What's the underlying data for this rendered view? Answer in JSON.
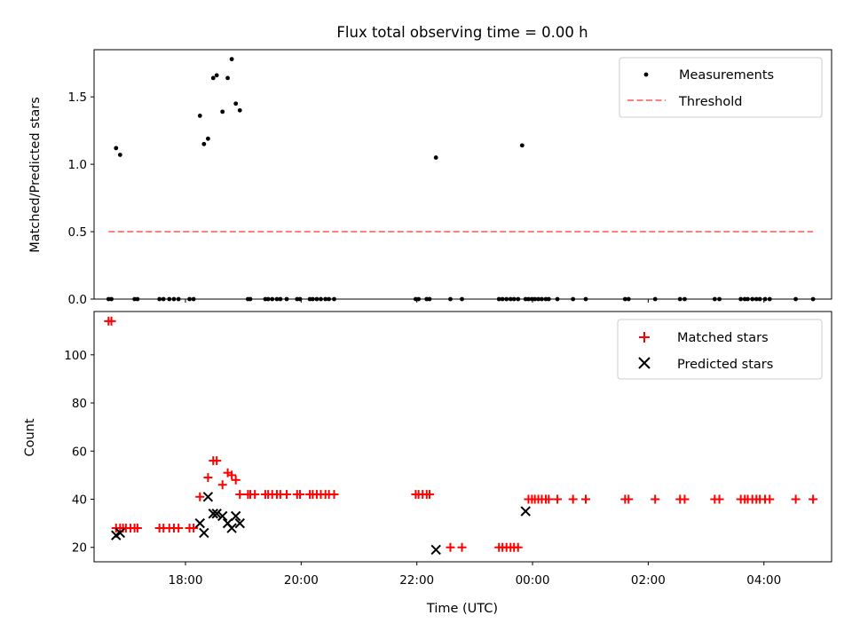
{
  "chart_data": [
    {
      "type": "scatter",
      "title": "Flux total observing time = 0.00 h",
      "xlabel": "",
      "ylabel": "Matched/Predicted stars",
      "xlim": [
        16.42,
        29.17
      ],
      "ylim": [
        0,
        1.85
      ],
      "yticks": [
        0.0,
        0.5,
        1.0,
        1.5
      ],
      "ytick_labels": [
        "0.0",
        "0.5",
        "1.0",
        "1.5"
      ],
      "xticks": [
        18,
        20,
        22,
        24,
        26,
        28
      ],
      "legend": "top-right",
      "series": [
        {
          "name": "Measurements",
          "marker": "dot",
          "color": "#000000",
          "x": [
            16.67,
            16.72,
            16.8,
            16.87,
            17.12,
            17.17,
            17.55,
            17.62,
            17.72,
            17.8,
            17.88,
            18.07,
            18.14,
            18.25,
            18.32,
            18.39,
            18.48,
            18.54,
            18.64,
            18.73,
            18.8,
            18.87,
            18.94,
            19.08,
            19.12,
            19.38,
            19.43,
            19.5,
            19.58,
            19.64,
            19.75,
            19.93,
            19.98,
            20.15,
            20.2,
            20.27,
            20.34,
            20.42,
            20.48,
            20.57,
            21.98,
            22.03,
            22.17,
            22.22,
            22.33,
            22.58,
            22.78,
            23.42,
            23.48,
            23.55,
            23.62,
            23.68,
            23.75,
            23.82,
            23.88,
            23.93,
            23.99,
            24.04,
            24.1,
            24.16,
            24.23,
            24.28,
            24.43,
            24.7,
            24.92,
            25.6,
            25.66,
            26.12,
            26.55,
            26.63,
            27.15,
            27.23,
            27.6,
            27.67,
            27.72,
            27.8,
            27.87,
            27.93,
            28.02,
            28.1,
            28.55,
            28.85
          ],
          "y": [
            0,
            0,
            1.12,
            1.07,
            0,
            0,
            0,
            0,
            0,
            0,
            0,
            0,
            0,
            1.36,
            1.15,
            1.19,
            1.64,
            1.66,
            1.39,
            1.64,
            1.78,
            1.45,
            1.4,
            0,
            0,
            0,
            0,
            0,
            0,
            0,
            0,
            0,
            0,
            0,
            0,
            0,
            0,
            0,
            0,
            0,
            0,
            0,
            0,
            0,
            1.05,
            0,
            0,
            0,
            0,
            0,
            0,
            0,
            0,
            1.14,
            0,
            0,
            0,
            0,
            0,
            0,
            0,
            0,
            0,
            0,
            0,
            0,
            0,
            0,
            0,
            0,
            0,
            0,
            0,
            0,
            0,
            0,
            0,
            0,
            0,
            0,
            0,
            0
          ]
        },
        {
          "name": "Threshold",
          "marker": "dashed-line",
          "color": "#ff7f7f",
          "x": [
            16.67,
            28.85
          ],
          "y": [
            0.5,
            0.5
          ]
        }
      ]
    },
    {
      "type": "scatter",
      "title": "",
      "xlabel": "Time (UTC)",
      "ylabel": "Count",
      "xlim": [
        16.42,
        29.17
      ],
      "ylim": [
        14,
        118
      ],
      "yticks": [
        20,
        40,
        60,
        80,
        100
      ],
      "ytick_labels": [
        "20",
        "40",
        "60",
        "80",
        "100"
      ],
      "xticks": [
        18,
        20,
        22,
        24,
        26,
        28
      ],
      "xtick_labels": [
        "18:00",
        "20:00",
        "22:00",
        "00:00",
        "02:00",
        "04:00"
      ],
      "legend": "top-right",
      "series": [
        {
          "name": "Matched stars",
          "marker": "plus",
          "color": "#ff0000",
          "x": [
            16.67,
            16.72,
            16.8,
            16.87,
            16.92,
            16.97,
            17.05,
            17.12,
            17.17,
            17.55,
            17.62,
            17.72,
            17.8,
            17.88,
            18.07,
            18.14,
            18.25,
            18.39,
            18.48,
            18.54,
            18.64,
            18.73,
            18.8,
            18.87,
            18.94,
            19.08,
            19.12,
            19.2,
            19.38,
            19.43,
            19.5,
            19.58,
            19.64,
            19.75,
            19.93,
            19.98,
            20.15,
            20.2,
            20.27,
            20.34,
            20.42,
            20.48,
            20.57,
            21.98,
            22.03,
            22.1,
            22.17,
            22.22,
            22.58,
            22.78,
            23.42,
            23.48,
            23.55,
            23.62,
            23.68,
            23.75,
            23.93,
            23.99,
            24.04,
            24.1,
            24.16,
            24.23,
            24.28,
            24.43,
            24.7,
            24.92,
            25.6,
            25.66,
            26.12,
            26.55,
            26.63,
            27.15,
            27.23,
            27.6,
            27.67,
            27.72,
            27.8,
            27.87,
            27.93,
            28.02,
            28.1,
            28.55,
            28.85
          ],
          "y": [
            114,
            114,
            28,
            28,
            28,
            28,
            28,
            28,
            28,
            28,
            28,
            28,
            28,
            28,
            28,
            28,
            41,
            49,
            56,
            56,
            46,
            51,
            50,
            48,
            42,
            42,
            42,
            42,
            42,
            42,
            42,
            42,
            42,
            42,
            42,
            42,
            42,
            42,
            42,
            42,
            42,
            42,
            42,
            42,
            42,
            42,
            42,
            42,
            20,
            20,
            20,
            20,
            20,
            20,
            20,
            20,
            40,
            40,
            40,
            40,
            40,
            40,
            40,
            40,
            40,
            40,
            40,
            40,
            40,
            40,
            40,
            40,
            40,
            40,
            40,
            40,
            40,
            40,
            40,
            40,
            40,
            40,
            40
          ]
        },
        {
          "name": "Predicted stars",
          "marker": "x",
          "color": "#000000",
          "x": [
            16.8,
            16.87,
            18.25,
            18.32,
            18.39,
            18.48,
            18.54,
            18.64,
            18.73,
            18.8,
            18.87,
            18.94,
            22.33,
            23.88
          ],
          "y": [
            25,
            26,
            30,
            26,
            41,
            34,
            34,
            33,
            30,
            28,
            33,
            30,
            19,
            35
          ]
        }
      ]
    }
  ]
}
